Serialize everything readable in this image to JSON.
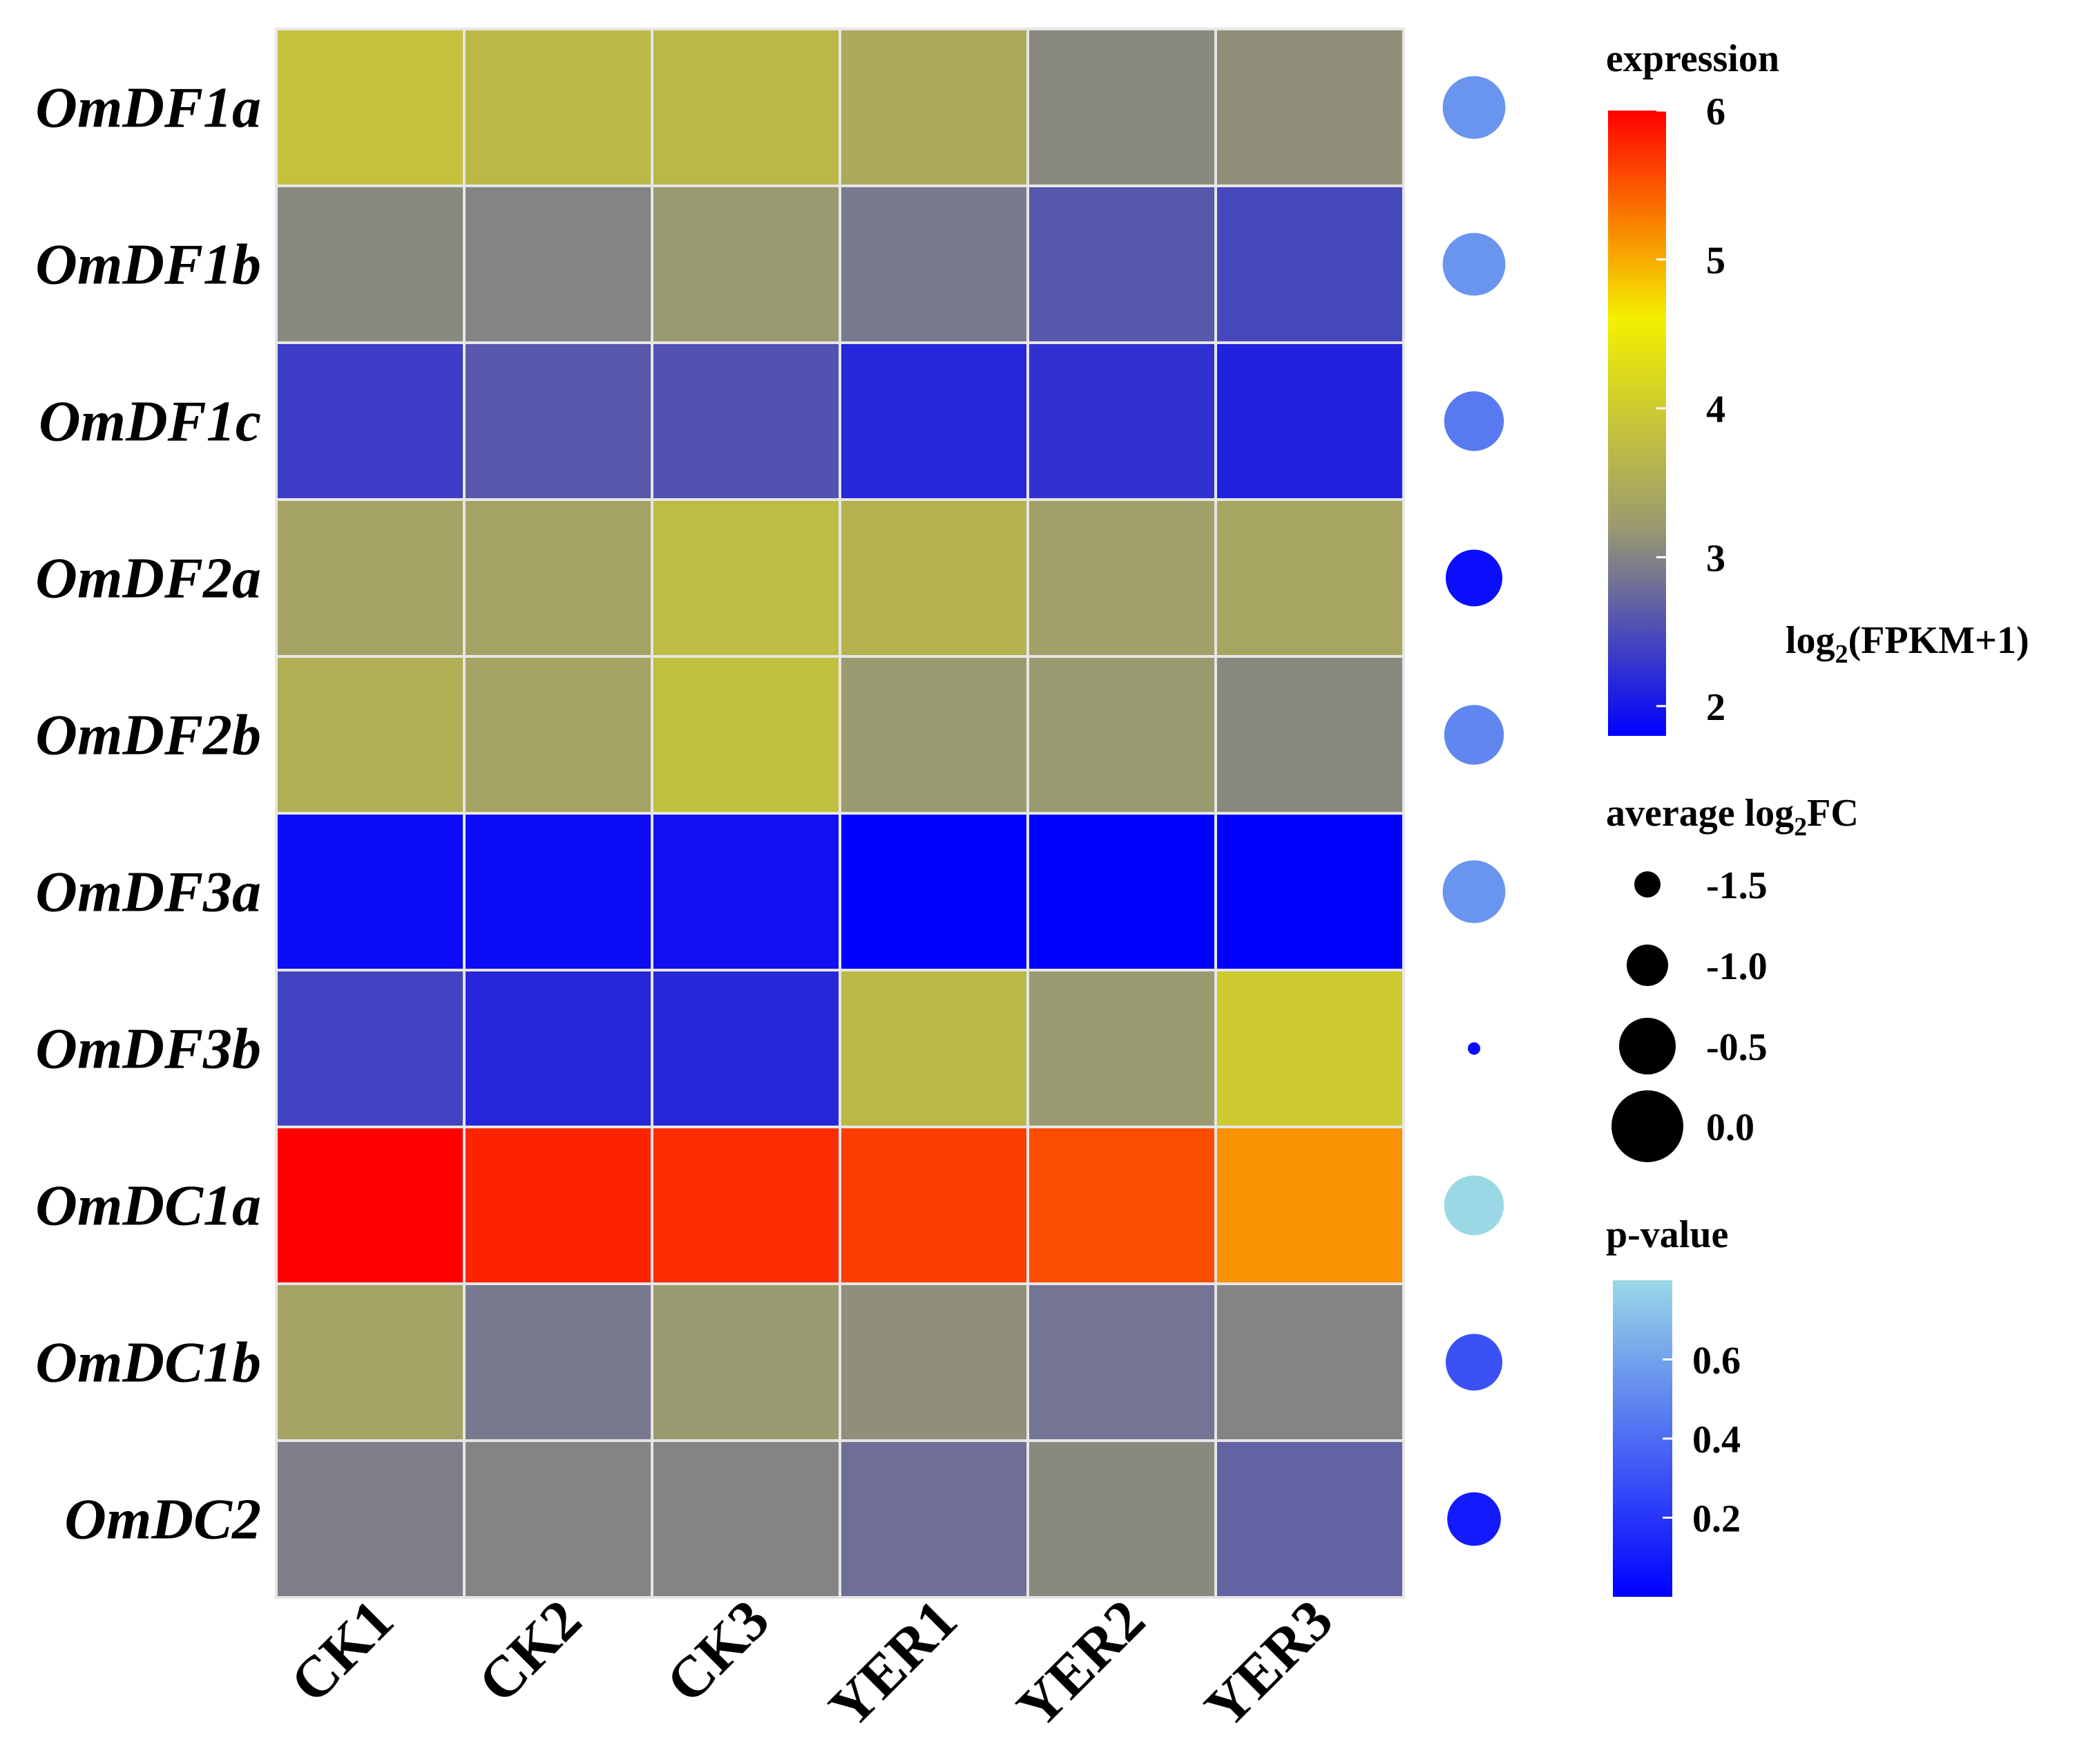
{
  "chart_data": {
    "type": "heatmap",
    "rows": [
      "OmDF1a",
      "OmDF1b",
      "OmDF1c",
      "OmDF2a",
      "OmDF2b",
      "OmDF3a",
      "OmDF3b",
      "OmDC1a",
      "OmDC1b",
      "OmDC2"
    ],
    "columns": [
      "CK1",
      "CK2",
      "CK3",
      "YER1",
      "YER2",
      "YER3"
    ],
    "values": [
      [
        3.85,
        3.7,
        3.7,
        3.45,
        3.05,
        3.1
      ],
      [
        3.05,
        3.0,
        3.2,
        2.9,
        2.6,
        2.45
      ],
      [
        2.35,
        2.6,
        2.55,
        2.15,
        2.25,
        2.1
      ],
      [
        3.35,
        3.35,
        3.75,
        3.6,
        3.3,
        3.4
      ],
      [
        3.55,
        3.35,
        3.8,
        3.2,
        3.2,
        3.05
      ],
      [
        1.9,
        1.9,
        1.95,
        1.6,
        1.75,
        1.65
      ],
      [
        2.4,
        2.15,
        2.15,
        3.7,
        3.2,
        4.0
      ],
      [
        6.0,
        5.8,
        5.75,
        5.65,
        5.55,
        5.15
      ],
      [
        3.35,
        2.9,
        3.2,
        3.1,
        2.85,
        3.0
      ],
      [
        2.95,
        3.0,
        3.0,
        2.8,
        3.05,
        2.7
      ]
    ],
    "average_log2FC": [
      -0.3,
      -0.3,
      -0.4,
      -0.5,
      -0.4,
      -0.3,
      -2.0,
      -0.4,
      -0.5,
      -0.6
    ],
    "p_value": [
      0.55,
      0.55,
      0.45,
      0.05,
      0.5,
      0.55,
      0.05,
      0.8,
      0.3,
      0.1
    ],
    "expression_legend": {
      "title": "expression",
      "ticks": [
        "6",
        "5",
        "4",
        "3",
        "2"
      ],
      "tick_values": [
        6,
        5,
        4,
        3,
        2
      ],
      "range": [
        1.8,
        6.0
      ],
      "colors": [
        "#0000ff",
        "#9a9a70",
        "#f4f000",
        "#ff0000"
      ],
      "unit_label": {
        "main": "log",
        "sub": "2",
        "rest": "(FPKM+1)"
      }
    },
    "size_legend": {
      "title": {
        "main": "average log",
        "sub": "2",
        "rest": "FC"
      },
      "ticks": [
        "-1.5",
        "-1.0",
        "-0.5",
        "0.0"
      ],
      "tick_values": [
        -1.5,
        -1.0,
        -0.5,
        0.0
      ]
    },
    "pvalue_legend": {
      "title": "p-value",
      "ticks": [
        "0.6",
        "0.4",
        "0.2"
      ],
      "tick_values": [
        0.6,
        0.4,
        0.2
      ],
      "range": [
        0.0,
        0.8
      ],
      "colors": [
        "#0000ff",
        "#9ad8e6"
      ]
    }
  }
}
